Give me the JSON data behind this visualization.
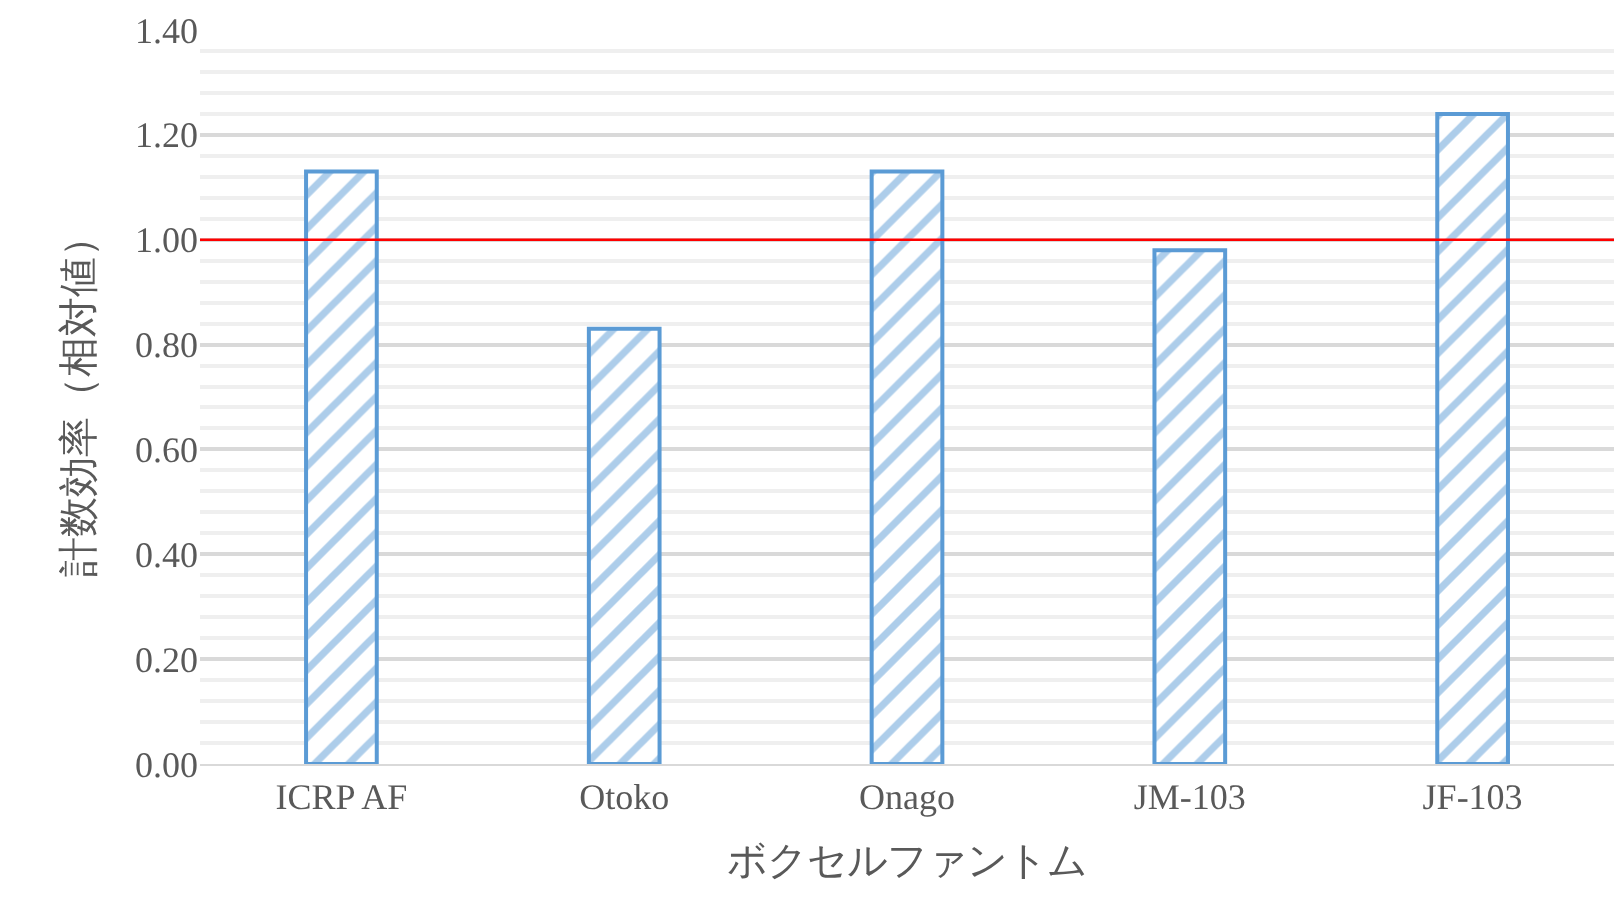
{
  "chart_data": {
    "type": "bar",
    "xlabel": "ボクセルファントム",
    "ylabel": "計数効率（相対値）",
    "categories": [
      "ICRP AF",
      "Otoko",
      "Onago",
      "JM-103",
      "JF-103"
    ],
    "values": [
      1.13,
      0.83,
      1.13,
      0.98,
      1.24
    ],
    "color": "#5b9bd5",
    "ylim": [
      0,
      1.4
    ],
    "yticks": [
      {
        "value": 0,
        "label": "0.00"
      },
      {
        "value": 0.2,
        "label": "0.20"
      },
      {
        "value": 0.4,
        "label": "0.40"
      },
      {
        "value": 0.6,
        "label": "0.60"
      },
      {
        "value": 0.8,
        "label": "0.80"
      },
      {
        "value": 1.0,
        "label": "1.00"
      },
      {
        "value": 1.2,
        "label": "1.20"
      },
      {
        "value": 1.4,
        "label": "1.40"
      }
    ],
    "ref_lines": [
      {
        "axis": "y",
        "value": 1.0,
        "color": "#ff0000"
      }
    ],
    "grid": "y",
    "legend": false
  }
}
